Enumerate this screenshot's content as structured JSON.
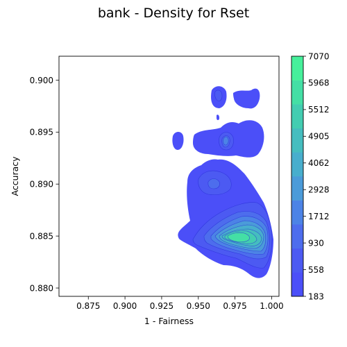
{
  "chart_data": {
    "type": "heatmap",
    "subtype": "filled-density-contour",
    "title": "bank - Density for Rset",
    "xlabel": "1 - Fairness",
    "ylabel": "Accuracy",
    "xlim": [
      0.855,
      1.005
    ],
    "ylim": [
      0.8792,
      0.9023
    ],
    "xticks": [
      "0.875",
      "0.900",
      "0.925",
      "0.950",
      "0.975",
      "1.000"
    ],
    "yticks": [
      "0.880",
      "0.885",
      "0.890",
      "0.895",
      "0.900"
    ],
    "colorbar": {
      "levels": [
        183,
        558,
        930,
        1712,
        2928,
        4062,
        4905,
        5512,
        5968,
        7070
      ],
      "labels": [
        "183",
        "558",
        "930",
        "1712",
        "2928",
        "4062",
        "4905",
        "5512",
        "5968",
        "7070"
      ],
      "colors": [
        "#4b4ff8",
        "#4c5af2",
        "#4d6ded",
        "#4c83e6",
        "#4b9bd9",
        "#48aecd",
        "#45bdbf",
        "#43cdb1",
        "#44dfa5",
        "#46f09b"
      ]
    },
    "density_peaks": [
      {
        "x": 0.975,
        "y": 0.8846,
        "level": 7070
      },
      {
        "x": 0.9695,
        "y": 0.8939,
        "level": 2928
      },
      {
        "x": 0.966,
        "y": 0.8901,
        "level": 1712
      },
      {
        "x": 0.9645,
        "y": 0.8986,
        "level": 930
      }
    ],
    "grid": false
  }
}
